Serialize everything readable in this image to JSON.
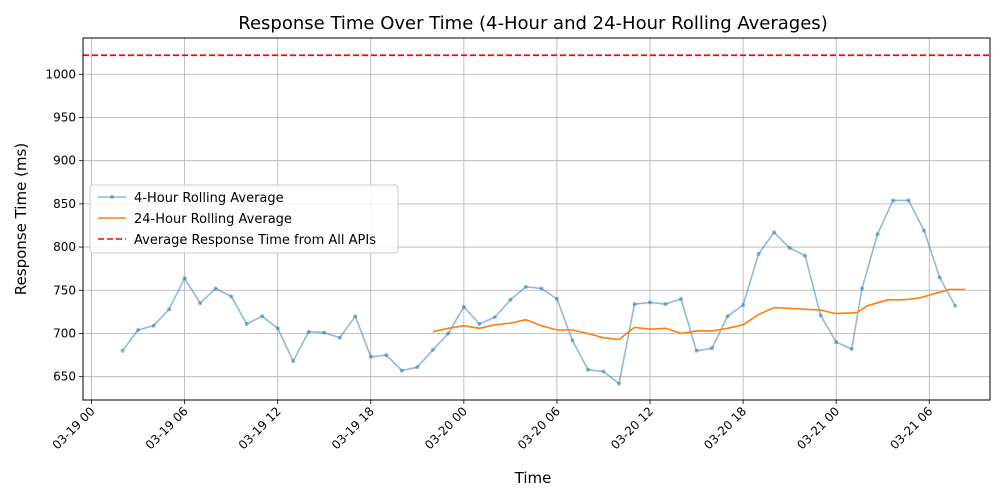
{
  "chart_data": {
    "type": "line",
    "title": "Response Time Over Time (4-Hour and 24-Hour Rolling Averages)",
    "xlabel": "Time",
    "ylabel": "Response Time (ms)",
    "xlim": [
      "2024-03-18 23:27",
      "2024-03-21 09:55"
    ],
    "ylim": [
      623,
      1042
    ],
    "x_ticks": [
      {
        "t": "2024-03-19 00:00",
        "label": "03-19 00"
      },
      {
        "t": "2024-03-19 06:00",
        "label": "03-19 06"
      },
      {
        "t": "2024-03-19 12:00",
        "label": "03-19 12"
      },
      {
        "t": "2024-03-19 18:00",
        "label": "03-19 18"
      },
      {
        "t": "2024-03-20 00:00",
        "label": "03-20 00"
      },
      {
        "t": "2024-03-20 06:00",
        "label": "03-20 06"
      },
      {
        "t": "2024-03-20 12:00",
        "label": "03-20 12"
      },
      {
        "t": "2024-03-20 18:00",
        "label": "03-20 18"
      },
      {
        "t": "2024-03-21 00:00",
        "label": "03-21 00"
      },
      {
        "t": "2024-03-21 06:00",
        "label": "03-21 06"
      }
    ],
    "y_ticks": [
      650,
      700,
      750,
      800,
      850,
      900,
      950,
      1000
    ],
    "grid": true,
    "legend_position": "center-left",
    "series": [
      {
        "name": "4-Hour Rolling Average",
        "color": "#1f77b4",
        "opacity": 0.5,
        "marker": "circle",
        "points": [
          [
            "2024-03-19 02:00",
            680
          ],
          [
            "2024-03-19 03:00",
            704
          ],
          [
            "2024-03-19 04:00",
            709
          ],
          [
            "2024-03-19 05:00",
            728
          ],
          [
            "2024-03-19 06:00",
            764
          ],
          [
            "2024-03-19 07:00",
            735
          ],
          [
            "2024-03-19 08:00",
            752
          ],
          [
            "2024-03-19 09:00",
            743
          ],
          [
            "2024-03-19 10:00",
            711
          ],
          [
            "2024-03-19 11:00",
            720
          ],
          [
            "2024-03-19 12:00",
            706
          ],
          [
            "2024-03-19 13:00",
            668
          ],
          [
            "2024-03-19 14:00",
            702
          ],
          [
            "2024-03-19 15:00",
            701
          ],
          [
            "2024-03-19 16:00",
            695
          ],
          [
            "2024-03-19 17:00",
            720
          ],
          [
            "2024-03-19 18:00",
            673
          ],
          [
            "2024-03-19 19:00",
            675
          ],
          [
            "2024-03-19 20:00",
            657
          ],
          [
            "2024-03-19 21:00",
            661
          ],
          [
            "2024-03-19 22:00",
            681
          ],
          [
            "2024-03-19 23:00",
            700
          ],
          [
            "2024-03-20 00:00",
            731
          ],
          [
            "2024-03-20 01:00",
            711
          ],
          [
            "2024-03-20 02:00",
            719
          ],
          [
            "2024-03-20 03:00",
            739
          ],
          [
            "2024-03-20 04:00",
            754
          ],
          [
            "2024-03-20 05:00",
            752
          ],
          [
            "2024-03-20 06:00",
            740
          ],
          [
            "2024-03-20 07:00",
            692
          ],
          [
            "2024-03-20 08:00",
            658
          ],
          [
            "2024-03-20 09:00",
            656
          ],
          [
            "2024-03-20 10:00",
            642
          ],
          [
            "2024-03-20 11:00",
            734
          ],
          [
            "2024-03-20 12:00",
            736
          ],
          [
            "2024-03-20 13:00",
            734
          ],
          [
            "2024-03-20 14:00",
            740
          ],
          [
            "2024-03-20 15:00",
            680
          ],
          [
            "2024-03-20 16:00",
            683
          ],
          [
            "2024-03-20 17:00",
            720
          ],
          [
            "2024-03-20 18:00",
            733
          ],
          [
            "2024-03-20 19:00",
            792
          ],
          [
            "2024-03-20 20:00",
            817
          ],
          [
            "2024-03-20 21:00",
            799
          ],
          [
            "2024-03-20 22:00",
            790
          ],
          [
            "2024-03-20 23:00",
            721
          ],
          [
            "2024-03-21 00:00",
            690
          ],
          [
            "2024-03-21 01:00",
            682
          ],
          [
            "2024-03-21 01:40",
            752
          ],
          [
            "2024-03-21 02:40",
            815
          ],
          [
            "2024-03-21 03:40",
            854
          ],
          [
            "2024-03-21 04:40",
            854
          ],
          [
            "2024-03-21 05:40",
            819
          ],
          [
            "2024-03-21 06:40",
            765
          ],
          [
            "2024-03-21 07:40",
            732
          ]
        ]
      },
      {
        "name": "24-Hour Rolling Average",
        "color": "#ff7f0e",
        "opacity": 1,
        "marker": "none",
        "points": [
          [
            "2024-03-19 22:00",
            702
          ],
          [
            "2024-03-19 23:00",
            706
          ],
          [
            "2024-03-20 00:00",
            709
          ],
          [
            "2024-03-20 01:00",
            706
          ],
          [
            "2024-03-20 02:00",
            710
          ],
          [
            "2024-03-20 03:00",
            712
          ],
          [
            "2024-03-20 04:00",
            716
          ],
          [
            "2024-03-20 05:00",
            709
          ],
          [
            "2024-03-20 06:00",
            704
          ],
          [
            "2024-03-20 07:00",
            704
          ],
          [
            "2024-03-20 08:00",
            700
          ],
          [
            "2024-03-20 09:00",
            695
          ],
          [
            "2024-03-20 10:00",
            693
          ],
          [
            "2024-03-20 11:00",
            707
          ],
          [
            "2024-03-20 12:00",
            705
          ],
          [
            "2024-03-20 13:00",
            706
          ],
          [
            "2024-03-20 14:00",
            700
          ],
          [
            "2024-03-20 15:00",
            703
          ],
          [
            "2024-03-20 16:00",
            703
          ],
          [
            "2024-03-20 17:00",
            706
          ],
          [
            "2024-03-20 18:00",
            710
          ],
          [
            "2024-03-20 19:00",
            722
          ],
          [
            "2024-03-20 20:00",
            730
          ],
          [
            "2024-03-20 21:00",
            729
          ],
          [
            "2024-03-20 22:00",
            728
          ],
          [
            "2024-03-20 23:00",
            727
          ],
          [
            "2024-03-21 00:00",
            723
          ],
          [
            "2024-03-21 01:20",
            724
          ],
          [
            "2024-03-21 02:00",
            732
          ],
          [
            "2024-03-21 03:20",
            739
          ],
          [
            "2024-03-21 04:20",
            739
          ],
          [
            "2024-03-21 05:20",
            741
          ],
          [
            "2024-03-21 06:20",
            746
          ],
          [
            "2024-03-21 07:20",
            751
          ],
          [
            "2024-03-21 08:20",
            751
          ]
        ]
      },
      {
        "name": "Average Response Time from All APIs",
        "color": "#ff0000",
        "style": "dashed",
        "type": "hline",
        "value": 1022
      }
    ]
  }
}
